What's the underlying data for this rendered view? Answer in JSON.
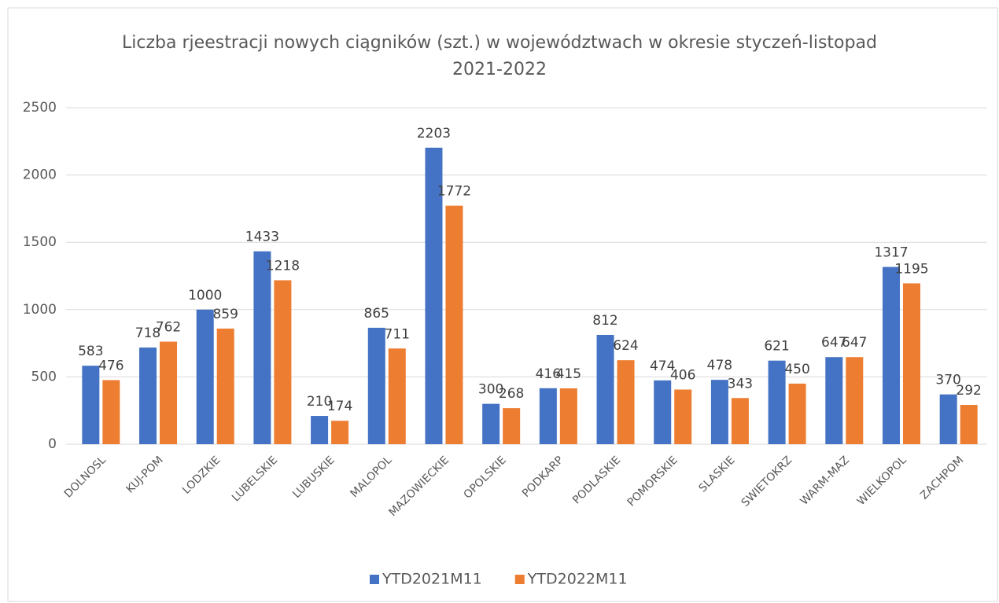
{
  "chart_data": {
    "type": "bar",
    "title": "Liczba rjeestracji nowych ciągników (szt.) w województwach w okresie styczeń-listopad 2021-2022",
    "categories": [
      "DOLNOSL",
      "KUJ-POM",
      "LODZKIE",
      "LUBELSKIE",
      "LUBUSKIE",
      "MALOPOL",
      "MAZOWIECKIE",
      "OPOLSKIE",
      "PODKARP",
      "PODLASKIE",
      "POMORSKIE",
      "SLASKIE",
      "SWIETOKRZ",
      "WARM-MAZ",
      "WIELKOPOL",
      "ZACHPOM"
    ],
    "series": [
      {
        "name": "YTD2021M11",
        "color": "#4472c4",
        "values": [
          583,
          718,
          1000,
          1433,
          210,
          865,
          2203,
          300,
          416,
          812,
          474,
          478,
          621,
          647,
          1317,
          370
        ]
      },
      {
        "name": "YTD2022M11",
        "color": "#ed7d31",
        "values": [
          476,
          762,
          859,
          1218,
          174,
          711,
          1772,
          268,
          415,
          624,
          406,
          343,
          450,
          647,
          1195,
          292
        ]
      }
    ],
    "ylim": [
      0,
      2500
    ],
    "yticks": [
      0,
      500,
      1000,
      1500,
      2000,
      2500
    ],
    "grid": true,
    "legend": "bottom"
  }
}
